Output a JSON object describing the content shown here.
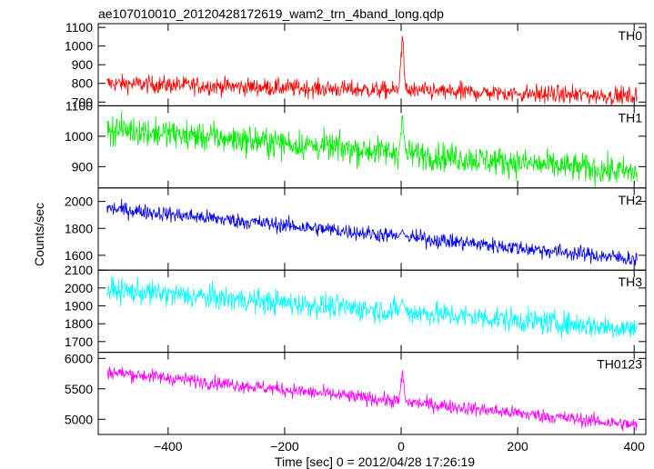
{
  "chart_data": {
    "type": "line",
    "title": "ae107010010_20120428172619_wam2_trn_4band_long.qdp",
    "xlabel": "Time [sec] 0 = 2012/04/28 17:26:19",
    "ylabel": "Counts/sec",
    "xlim": [
      -520,
      420
    ],
    "x_ticks": [
      -400,
      -200,
      0,
      200,
      400
    ],
    "series_range": [
      -505,
      405
    ],
    "legend": "none",
    "grid": false,
    "panels": [
      {
        "name": "TH0",
        "color": "#ff0000",
        "ylim": [
          680,
          1120
        ],
        "y_ticks": [
          700,
          800,
          900,
          1000,
          1100
        ],
        "trend_start": 800,
        "trend_end": 730,
        "noise_amplitude": 45,
        "spike": {
          "x": 2,
          "peak": 1110
        }
      },
      {
        "name": "TH1",
        "color": "#00ee00",
        "ylim": [
          830,
          1100
        ],
        "y_ticks": [
          900,
          1000,
          1100
        ],
        "trend_start": 1025,
        "trend_end": 880,
        "noise_amplitude": 45,
        "spike": {
          "x": 2,
          "peak": 1080
        }
      },
      {
        "name": "TH2",
        "color": "#0000ee",
        "ylim": [
          1490,
          2100
        ],
        "y_ticks": [
          1600,
          1800,
          2000
        ],
        "trend_start": 1950,
        "trend_end": 1570,
        "noise_amplitude": 55,
        "spike": {
          "x": 2,
          "peak": 1800
        }
      },
      {
        "name": "TH3",
        "color": "#00ffff",
        "ylim": [
          1640,
          2100
        ],
        "y_ticks": [
          1700,
          1800,
          1900,
          2000,
          2100
        ],
        "trend_start": 1990,
        "trend_end": 1770,
        "noise_amplitude": 65,
        "spike": {
          "x": 2,
          "peak": 1960
        }
      },
      {
        "name": "TH0123",
        "color": "#ff00ff",
        "ylim": [
          4750,
          6100
        ],
        "y_ticks": [
          5000,
          5500,
          6000
        ],
        "trend_start": 5780,
        "trend_end": 4900,
        "noise_amplitude": 110,
        "spike": {
          "x": 2,
          "peak": 5880
        }
      }
    ]
  }
}
